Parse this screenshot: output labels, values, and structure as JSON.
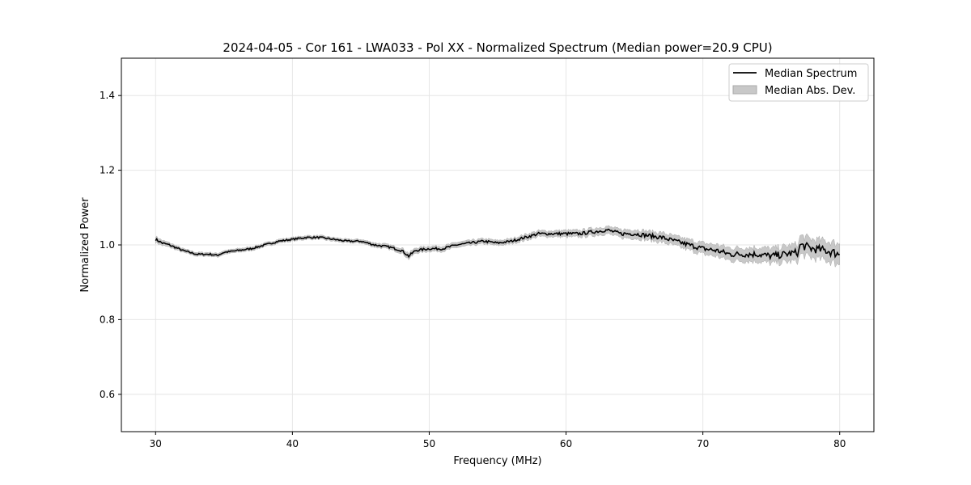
{
  "chart_data": {
    "type": "line",
    "title": "2024-04-05 - Cor 161 - LWA033 - Pol XX - Normalized Spectrum (Median power=20.9 CPU)",
    "xlabel": "Frequency (MHz)",
    "ylabel": "Normalized Power",
    "xlim": [
      27.5,
      82.5
    ],
    "ylim": [
      0.5,
      1.5
    ],
    "xticks": [
      30,
      40,
      50,
      60,
      70,
      80
    ],
    "yticks": [
      0.6,
      0.8,
      1.0,
      1.2,
      1.4
    ],
    "xtick_labels": [
      "30",
      "40",
      "50",
      "60",
      "70",
      "80"
    ],
    "ytick_labels": [
      "0.6",
      "0.8",
      "1.0",
      "1.2",
      "1.4"
    ],
    "grid": true,
    "legend_position": "top-right",
    "legend": [
      "Median Spectrum",
      "Median Abs. Dev."
    ],
    "x": [
      30,
      30.5,
      31,
      32,
      33,
      34,
      34.5,
      35,
      36,
      37,
      38,
      39,
      40,
      41,
      42,
      43,
      44,
      45,
      46,
      47,
      48,
      48.5,
      49,
      50,
      51,
      52,
      53,
      54,
      55,
      56,
      57,
      58,
      59,
      60,
      61,
      62,
      63,
      64,
      65,
      66,
      67,
      68,
      69,
      70,
      71,
      72,
      73,
      74,
      75,
      76,
      77,
      77.1,
      78,
      79,
      80
    ],
    "series": [
      {
        "name": "Median Spectrum",
        "values": [
          1.015,
          1.005,
          1.0,
          0.985,
          0.975,
          0.975,
          0.972,
          0.98,
          0.985,
          0.99,
          1.0,
          1.01,
          1.015,
          1.02,
          1.02,
          1.015,
          1.01,
          1.01,
          1.0,
          0.995,
          0.985,
          0.97,
          0.985,
          0.99,
          0.99,
          1.0,
          1.005,
          1.01,
          1.005,
          1.01,
          1.02,
          1.03,
          1.03,
          1.03,
          1.03,
          1.035,
          1.04,
          1.03,
          1.03,
          1.025,
          1.02,
          1.01,
          1.0,
          0.99,
          0.985,
          0.975,
          0.975,
          0.975,
          0.97,
          0.975,
          0.98,
          1.0,
          0.99,
          0.985,
          0.975
        ]
      },
      {
        "name": "Median Abs. Dev.",
        "values": [
          0.008,
          0.007,
          0.006,
          0.005,
          0.005,
          0.005,
          0.005,
          0.005,
          0.005,
          0.005,
          0.005,
          0.005,
          0.005,
          0.005,
          0.005,
          0.005,
          0.005,
          0.005,
          0.006,
          0.006,
          0.007,
          0.008,
          0.007,
          0.007,
          0.007,
          0.007,
          0.007,
          0.007,
          0.007,
          0.007,
          0.008,
          0.008,
          0.008,
          0.009,
          0.009,
          0.01,
          0.01,
          0.011,
          0.012,
          0.012,
          0.013,
          0.013,
          0.014,
          0.015,
          0.016,
          0.017,
          0.018,
          0.019,
          0.02,
          0.021,
          0.023,
          0.025,
          0.025,
          0.026,
          0.028
        ]
      }
    ]
  }
}
